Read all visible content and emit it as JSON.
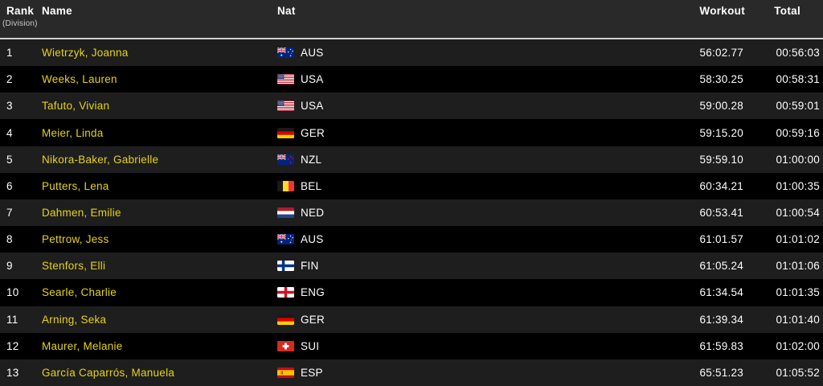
{
  "table": {
    "columns": {
      "rank": "Rank",
      "division": "(Division)",
      "name": "Name",
      "nat": "Nat",
      "workout": "Workout",
      "total": "Total"
    },
    "rows": [
      {
        "rank": "1",
        "name": "Wietrzyk, Joanna",
        "nat": "AUS",
        "flag_icon": "flag-aus-icon",
        "workout": "56:02.77",
        "total": "00:56:03"
      },
      {
        "rank": "2",
        "name": "Weeks, Lauren",
        "nat": "USA",
        "flag_icon": "flag-usa-icon",
        "workout": "58:30.25",
        "total": "00:58:31"
      },
      {
        "rank": "3",
        "name": "Tafuto, Vivian",
        "nat": "USA",
        "flag_icon": "flag-usa-icon",
        "workout": "59:00.28",
        "total": "00:59:01"
      },
      {
        "rank": "4",
        "name": "Meier, Linda",
        "nat": "GER",
        "flag_icon": "flag-ger-icon",
        "workout": "59:15.20",
        "total": "00:59:16"
      },
      {
        "rank": "5",
        "name": "Nikora-Baker, Gabrielle",
        "nat": "NZL",
        "flag_icon": "flag-nzl-icon",
        "workout": "59:59.10",
        "total": "01:00:00"
      },
      {
        "rank": "6",
        "name": "Putters, Lena",
        "nat": "BEL",
        "flag_icon": "flag-bel-icon",
        "workout": "60:34.21",
        "total": "01:00:35"
      },
      {
        "rank": "7",
        "name": "Dahmen, Emilie",
        "nat": "NED",
        "flag_icon": "flag-ned-icon",
        "workout": "60:53.41",
        "total": "01:00:54"
      },
      {
        "rank": "8",
        "name": "Pettrow, Jess",
        "nat": "AUS",
        "flag_icon": "flag-aus-icon",
        "workout": "61:01.57",
        "total": "01:01:02"
      },
      {
        "rank": "9",
        "name": "Stenfors, Elli",
        "nat": "FIN",
        "flag_icon": "flag-fin-icon",
        "workout": "61:05.24",
        "total": "01:01:06"
      },
      {
        "rank": "10",
        "name": "Searle, Charlie",
        "nat": "ENG",
        "flag_icon": "flag-eng-icon",
        "workout": "61:34.54",
        "total": "01:01:35"
      },
      {
        "rank": "11",
        "name": "Arning, Seka",
        "nat": "GER",
        "flag_icon": "flag-ger-icon",
        "workout": "61:39.34",
        "total": "01:01:40"
      },
      {
        "rank": "12",
        "name": "Maurer, Melanie",
        "nat": "SUI",
        "flag_icon": "flag-sui-icon",
        "workout": "61:59.83",
        "total": "01:02:00"
      },
      {
        "rank": "13",
        "name": "García Caparrós, Manuela",
        "nat": "ESP",
        "flag_icon": "flag-esp-icon",
        "workout": "65:51.23",
        "total": "01:05:52"
      }
    ]
  },
  "colors": {
    "accent_yellow": "#e6d317",
    "header_bg": "#292929",
    "row_odd_bg": "#1e1e1e",
    "row_even_bg": "#000000",
    "divider": "#cfcfcf",
    "text": "#ffffff",
    "division_text": "#c9c9c9"
  }
}
